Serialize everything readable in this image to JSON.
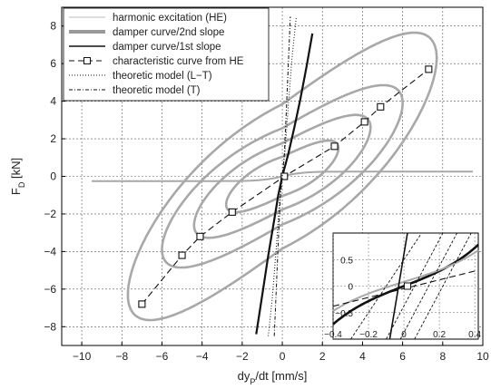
{
  "chart_data": {
    "type": "line",
    "xlabel": "dy_P/dt [mm/s]",
    "ylabel": "F_D [kN]",
    "xlim": [
      -11,
      10
    ],
    "ylim": [
      -9,
      9
    ],
    "x_ticks": [
      -10,
      -8,
      -6,
      -4,
      -2,
      0,
      2,
      4,
      6,
      8,
      10
    ],
    "y_ticks": [
      -8,
      -6,
      -4,
      -2,
      0,
      2,
      4,
      6,
      8
    ],
    "grid": "dotted",
    "legend_position": "top-left",
    "legend": [
      "harmonic excitation (HE)",
      "damper curve/2nd slope",
      "damper curve/1st slope",
      "characteristic curve from HE",
      "theoretic model (L−T)",
      "theoretic model (T)"
    ],
    "series": [
      {
        "name": "damper curve/1st slope",
        "x": [
          -1.3,
          -1.0,
          -0.7,
          -0.4,
          -0.2,
          0.0,
          0.3,
          0.6,
          0.9,
          1.2,
          1.5
        ],
        "y": [
          -8.4,
          -6.3,
          -4.2,
          -2.3,
          -1.0,
          0.0,
          1.2,
          2.6,
          4.1,
          5.8,
          7.6
        ]
      },
      {
        "name": "characteristic curve from HE",
        "x": [
          -7.0,
          -5.0,
          -4.1,
          -2.5,
          0.1,
          2.6,
          4.1,
          4.9,
          7.3
        ],
        "y": [
          -6.8,
          -4.2,
          -3.2,
          -1.9,
          0.0,
          1.6,
          2.9,
          3.7,
          5.7
        ]
      },
      {
        "name": "theoretic model (L−T)",
        "x": [
          -0.7,
          -0.5,
          -0.3,
          -0.15,
          0.0,
          0.15,
          0.3,
          0.5,
          0.7
        ],
        "y": [
          -8.5,
          -6.5,
          -3.8,
          -1.5,
          0.0,
          1.5,
          3.8,
          6.5,
          8.5
        ]
      },
      {
        "name": "theoretic model (T)",
        "x": [
          -0.4,
          -0.3,
          -0.2,
          -0.1,
          0.0,
          0.1,
          0.2,
          0.3,
          0.4
        ],
        "y": [
          -8.5,
          -6.0,
          -3.5,
          -1.2,
          0.0,
          1.2,
          3.5,
          6.0,
          8.5
        ]
      }
    ],
    "inset": {
      "xlim": [
        -0.4,
        0.42
      ],
      "ylim": [
        -1.0,
        1.0
      ],
      "x_ticks": [
        -0.4,
        -0.2,
        0,
        0.2,
        0.4
      ],
      "x_tick_labels": [
        "−0.4",
        "−0.2",
        "0",
        "0.2",
        "0.4"
      ],
      "y_ticks": [
        -0.5,
        0,
        0.5
      ],
      "y_tick_labels": [
        "−0.5",
        "0",
        "0.5"
      ]
    }
  }
}
